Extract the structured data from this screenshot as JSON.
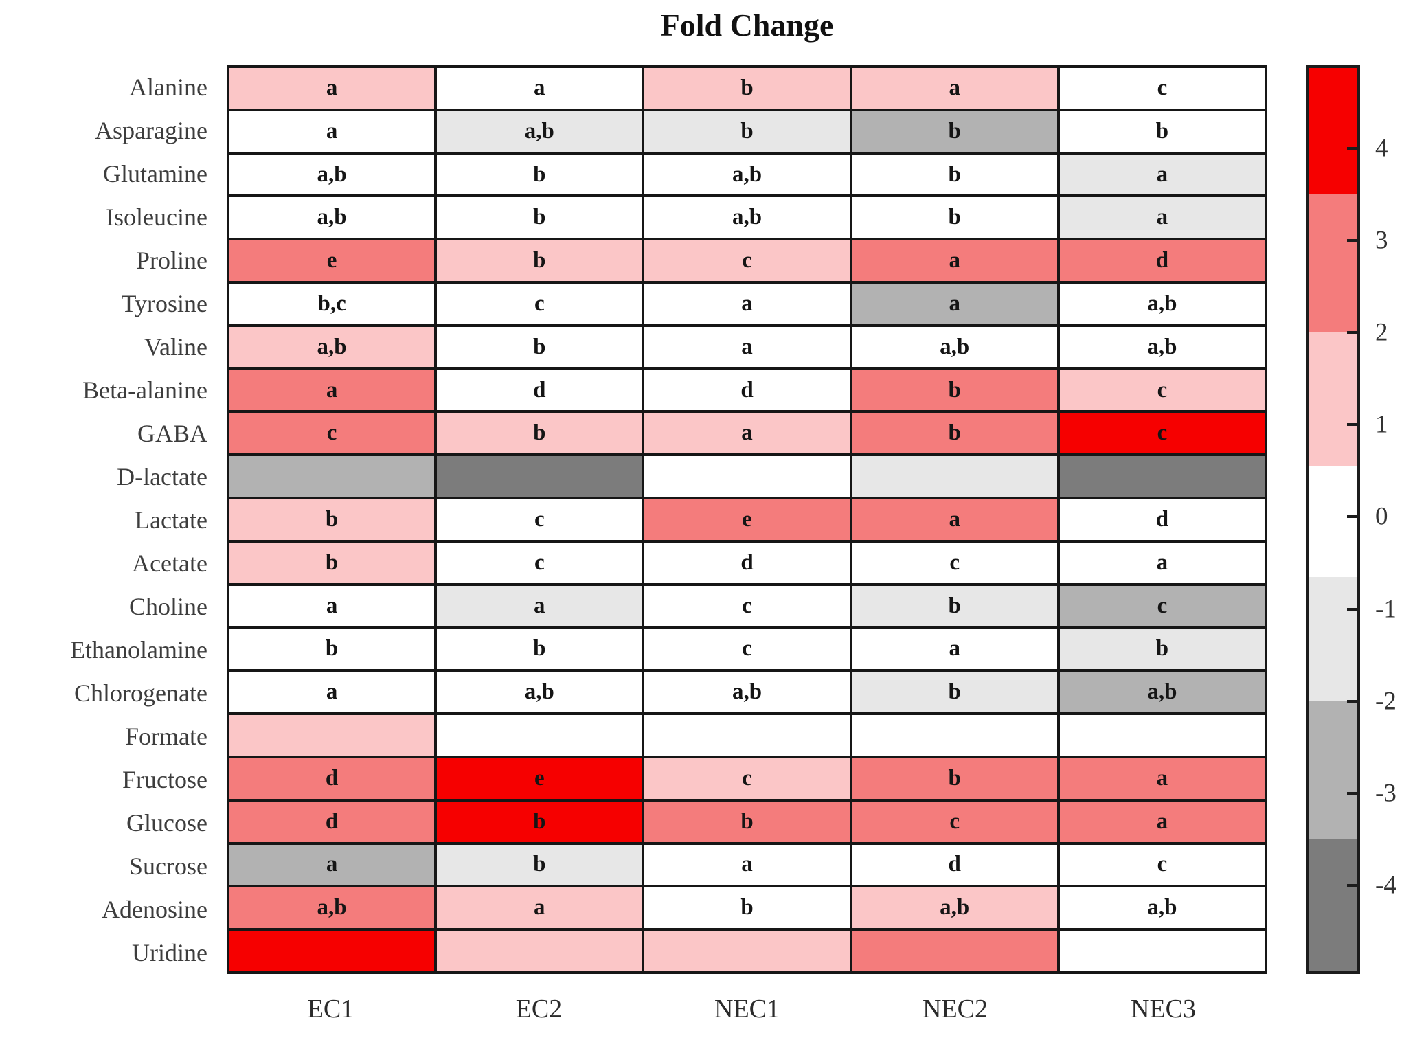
{
  "chart_data": {
    "type": "heatmap",
    "title": "Fold Change",
    "columns": [
      "EC1",
      "EC2",
      "NEC1",
      "NEC2",
      "NEC3"
    ],
    "legend_position": "right-colorbar",
    "grid": true,
    "cell_annotation_note": "letters mark statistical groups; empty string = no letter shown",
    "color_key": {
      "red": {
        "hex": "#f60000",
        "approx_range": [
          3.5,
          4.9
        ],
        "approx_value": 4.2
      },
      "salmon": {
        "hex": "#f47c7c",
        "approx_range": [
          2.0,
          3.5
        ],
        "approx_value": 2.75
      },
      "pink": {
        "hex": "#fbc6c7",
        "approx_range": [
          0.55,
          2.0
        ],
        "approx_value": 1.3
      },
      "white": {
        "hex": "#ffffff",
        "approx_range": [
          -0.65,
          0.55
        ],
        "approx_value": 0
      },
      "light_gray": {
        "hex": "#e7e7e7",
        "approx_range": [
          -2.0,
          -0.65
        ],
        "approx_value": -1.3
      },
      "mid_gray": {
        "hex": "#b2b2b2",
        "approx_range": [
          -3.5,
          -2.0
        ],
        "approx_value": -2.75
      },
      "dark_gray": {
        "hex": "#7c7c7c",
        "approx_range": [
          -4.9,
          -3.5
        ],
        "approx_value": -4.2
      }
    },
    "colorbar": {
      "vmax": 4.87,
      "vmin": -4.93,
      "ticks": [
        4,
        3,
        2,
        1,
        0,
        -1,
        -2,
        -3,
        -4
      ],
      "tick_labels": [
        "4",
        "3",
        "2",
        "1",
        "0",
        "-1",
        "-2",
        "-3",
        "-4"
      ],
      "bands": [
        {
          "color": "red",
          "from": 4.87,
          "to": 3.5
        },
        {
          "color": "salmon",
          "from": 3.5,
          "to": 2.0
        },
        {
          "color": "pink",
          "from": 2.0,
          "to": 0.55
        },
        {
          "color": "white",
          "from": 0.55,
          "to": -0.65
        },
        {
          "color": "light_gray",
          "from": -0.65,
          "to": -2.0
        },
        {
          "color": "mid_gray",
          "from": -2.0,
          "to": -3.5
        },
        {
          "color": "dark_gray",
          "from": -3.5,
          "to": -4.93
        }
      ]
    },
    "rows": [
      {
        "name": "Alanine",
        "cells": [
          {
            "letter": "a",
            "color": "pink"
          },
          {
            "letter": "a",
            "color": "white"
          },
          {
            "letter": "b",
            "color": "pink"
          },
          {
            "letter": "a",
            "color": "pink"
          },
          {
            "letter": "c",
            "color": "white"
          }
        ]
      },
      {
        "name": "Asparagine",
        "cells": [
          {
            "letter": "a",
            "color": "white"
          },
          {
            "letter": "a,b",
            "color": "light_gray"
          },
          {
            "letter": "b",
            "color": "light_gray"
          },
          {
            "letter": "b",
            "color": "mid_gray"
          },
          {
            "letter": "b",
            "color": "white"
          }
        ]
      },
      {
        "name": "Glutamine",
        "cells": [
          {
            "letter": "a,b",
            "color": "white"
          },
          {
            "letter": "b",
            "color": "white"
          },
          {
            "letter": "a,b",
            "color": "white"
          },
          {
            "letter": "b",
            "color": "white"
          },
          {
            "letter": "a",
            "color": "light_gray"
          }
        ]
      },
      {
        "name": "Isoleucine",
        "cells": [
          {
            "letter": "a,b",
            "color": "white"
          },
          {
            "letter": "b",
            "color": "white"
          },
          {
            "letter": "a,b",
            "color": "white"
          },
          {
            "letter": "b",
            "color": "white"
          },
          {
            "letter": "a",
            "color": "light_gray"
          }
        ]
      },
      {
        "name": "Proline",
        "cells": [
          {
            "letter": "e",
            "color": "salmon"
          },
          {
            "letter": "b",
            "color": "pink"
          },
          {
            "letter": "c",
            "color": "pink"
          },
          {
            "letter": "a",
            "color": "salmon"
          },
          {
            "letter": "d",
            "color": "salmon"
          }
        ]
      },
      {
        "name": "Tyrosine",
        "cells": [
          {
            "letter": "b,c",
            "color": "white"
          },
          {
            "letter": "c",
            "color": "white"
          },
          {
            "letter": "a",
            "color": "white"
          },
          {
            "letter": "a",
            "color": "mid_gray"
          },
          {
            "letter": "a,b",
            "color": "white"
          }
        ]
      },
      {
        "name": "Valine",
        "cells": [
          {
            "letter": "a,b",
            "color": "pink"
          },
          {
            "letter": "b",
            "color": "white"
          },
          {
            "letter": "a",
            "color": "white"
          },
          {
            "letter": "a,b",
            "color": "white"
          },
          {
            "letter": "a,b",
            "color": "white"
          }
        ]
      },
      {
        "name": "Beta-alanine",
        "cells": [
          {
            "letter": "a",
            "color": "salmon"
          },
          {
            "letter": "d",
            "color": "white"
          },
          {
            "letter": "d",
            "color": "white"
          },
          {
            "letter": "b",
            "color": "salmon"
          },
          {
            "letter": "c",
            "color": "pink"
          }
        ]
      },
      {
        "name": "GABA",
        "cells": [
          {
            "letter": "c",
            "color": "salmon"
          },
          {
            "letter": "b",
            "color": "pink"
          },
          {
            "letter": "a",
            "color": "pink"
          },
          {
            "letter": "b",
            "color": "salmon"
          },
          {
            "letter": "c",
            "color": "red"
          }
        ]
      },
      {
        "name": "D-lactate",
        "cells": [
          {
            "letter": "",
            "color": "mid_gray"
          },
          {
            "letter": "",
            "color": "dark_gray"
          },
          {
            "letter": "",
            "color": "white"
          },
          {
            "letter": "",
            "color": "light_gray"
          },
          {
            "letter": "",
            "color": "dark_gray"
          }
        ]
      },
      {
        "name": "Lactate",
        "cells": [
          {
            "letter": "b",
            "color": "pink"
          },
          {
            "letter": "c",
            "color": "white"
          },
          {
            "letter": "e",
            "color": "salmon"
          },
          {
            "letter": "a",
            "color": "salmon"
          },
          {
            "letter": "d",
            "color": "white"
          }
        ]
      },
      {
        "name": "Acetate",
        "cells": [
          {
            "letter": "b",
            "color": "pink"
          },
          {
            "letter": "c",
            "color": "white"
          },
          {
            "letter": "d",
            "color": "white"
          },
          {
            "letter": "c",
            "color": "white"
          },
          {
            "letter": "a",
            "color": "white"
          }
        ]
      },
      {
        "name": "Choline",
        "cells": [
          {
            "letter": "a",
            "color": "white"
          },
          {
            "letter": "a",
            "color": "light_gray"
          },
          {
            "letter": "c",
            "color": "white"
          },
          {
            "letter": "b",
            "color": "light_gray"
          },
          {
            "letter": "c",
            "color": "mid_gray"
          }
        ]
      },
      {
        "name": "Ethanolamine",
        "cells": [
          {
            "letter": "b",
            "color": "white"
          },
          {
            "letter": "b",
            "color": "white"
          },
          {
            "letter": "c",
            "color": "white"
          },
          {
            "letter": "a",
            "color": "white"
          },
          {
            "letter": "b",
            "color": "light_gray"
          }
        ]
      },
      {
        "name": "Chlorogenate",
        "cells": [
          {
            "letter": "a",
            "color": "white"
          },
          {
            "letter": "a,b",
            "color": "white"
          },
          {
            "letter": "a,b",
            "color": "white"
          },
          {
            "letter": "b",
            "color": "light_gray"
          },
          {
            "letter": "a,b",
            "color": "mid_gray"
          }
        ]
      },
      {
        "name": "Formate",
        "cells": [
          {
            "letter": "",
            "color": "pink"
          },
          {
            "letter": "",
            "color": "white"
          },
          {
            "letter": "",
            "color": "white"
          },
          {
            "letter": "",
            "color": "white"
          },
          {
            "letter": "",
            "color": "white"
          }
        ]
      },
      {
        "name": "Fructose",
        "cells": [
          {
            "letter": "d",
            "color": "salmon"
          },
          {
            "letter": "e",
            "color": "red"
          },
          {
            "letter": "c",
            "color": "pink"
          },
          {
            "letter": "b",
            "color": "salmon"
          },
          {
            "letter": "a",
            "color": "salmon"
          }
        ]
      },
      {
        "name": "Glucose",
        "cells": [
          {
            "letter": "d",
            "color": "salmon"
          },
          {
            "letter": "b",
            "color": "red"
          },
          {
            "letter": "b",
            "color": "salmon"
          },
          {
            "letter": "c",
            "color": "salmon"
          },
          {
            "letter": "a",
            "color": "salmon"
          }
        ]
      },
      {
        "name": "Sucrose",
        "cells": [
          {
            "letter": "a",
            "color": "mid_gray"
          },
          {
            "letter": "b",
            "color": "light_gray"
          },
          {
            "letter": "a",
            "color": "white"
          },
          {
            "letter": "d",
            "color": "white"
          },
          {
            "letter": "c",
            "color": "white"
          }
        ]
      },
      {
        "name": "Adenosine",
        "cells": [
          {
            "letter": "a,b",
            "color": "salmon"
          },
          {
            "letter": "a",
            "color": "pink"
          },
          {
            "letter": "b",
            "color": "white"
          },
          {
            "letter": "a,b",
            "color": "pink"
          },
          {
            "letter": "a,b",
            "color": "white"
          }
        ]
      },
      {
        "name": "Uridine",
        "cells": [
          {
            "letter": "",
            "color": "red"
          },
          {
            "letter": "",
            "color": "pink"
          },
          {
            "letter": "",
            "color": "pink"
          },
          {
            "letter": "",
            "color": "salmon"
          },
          {
            "letter": "",
            "color": "white"
          }
        ]
      }
    ]
  }
}
